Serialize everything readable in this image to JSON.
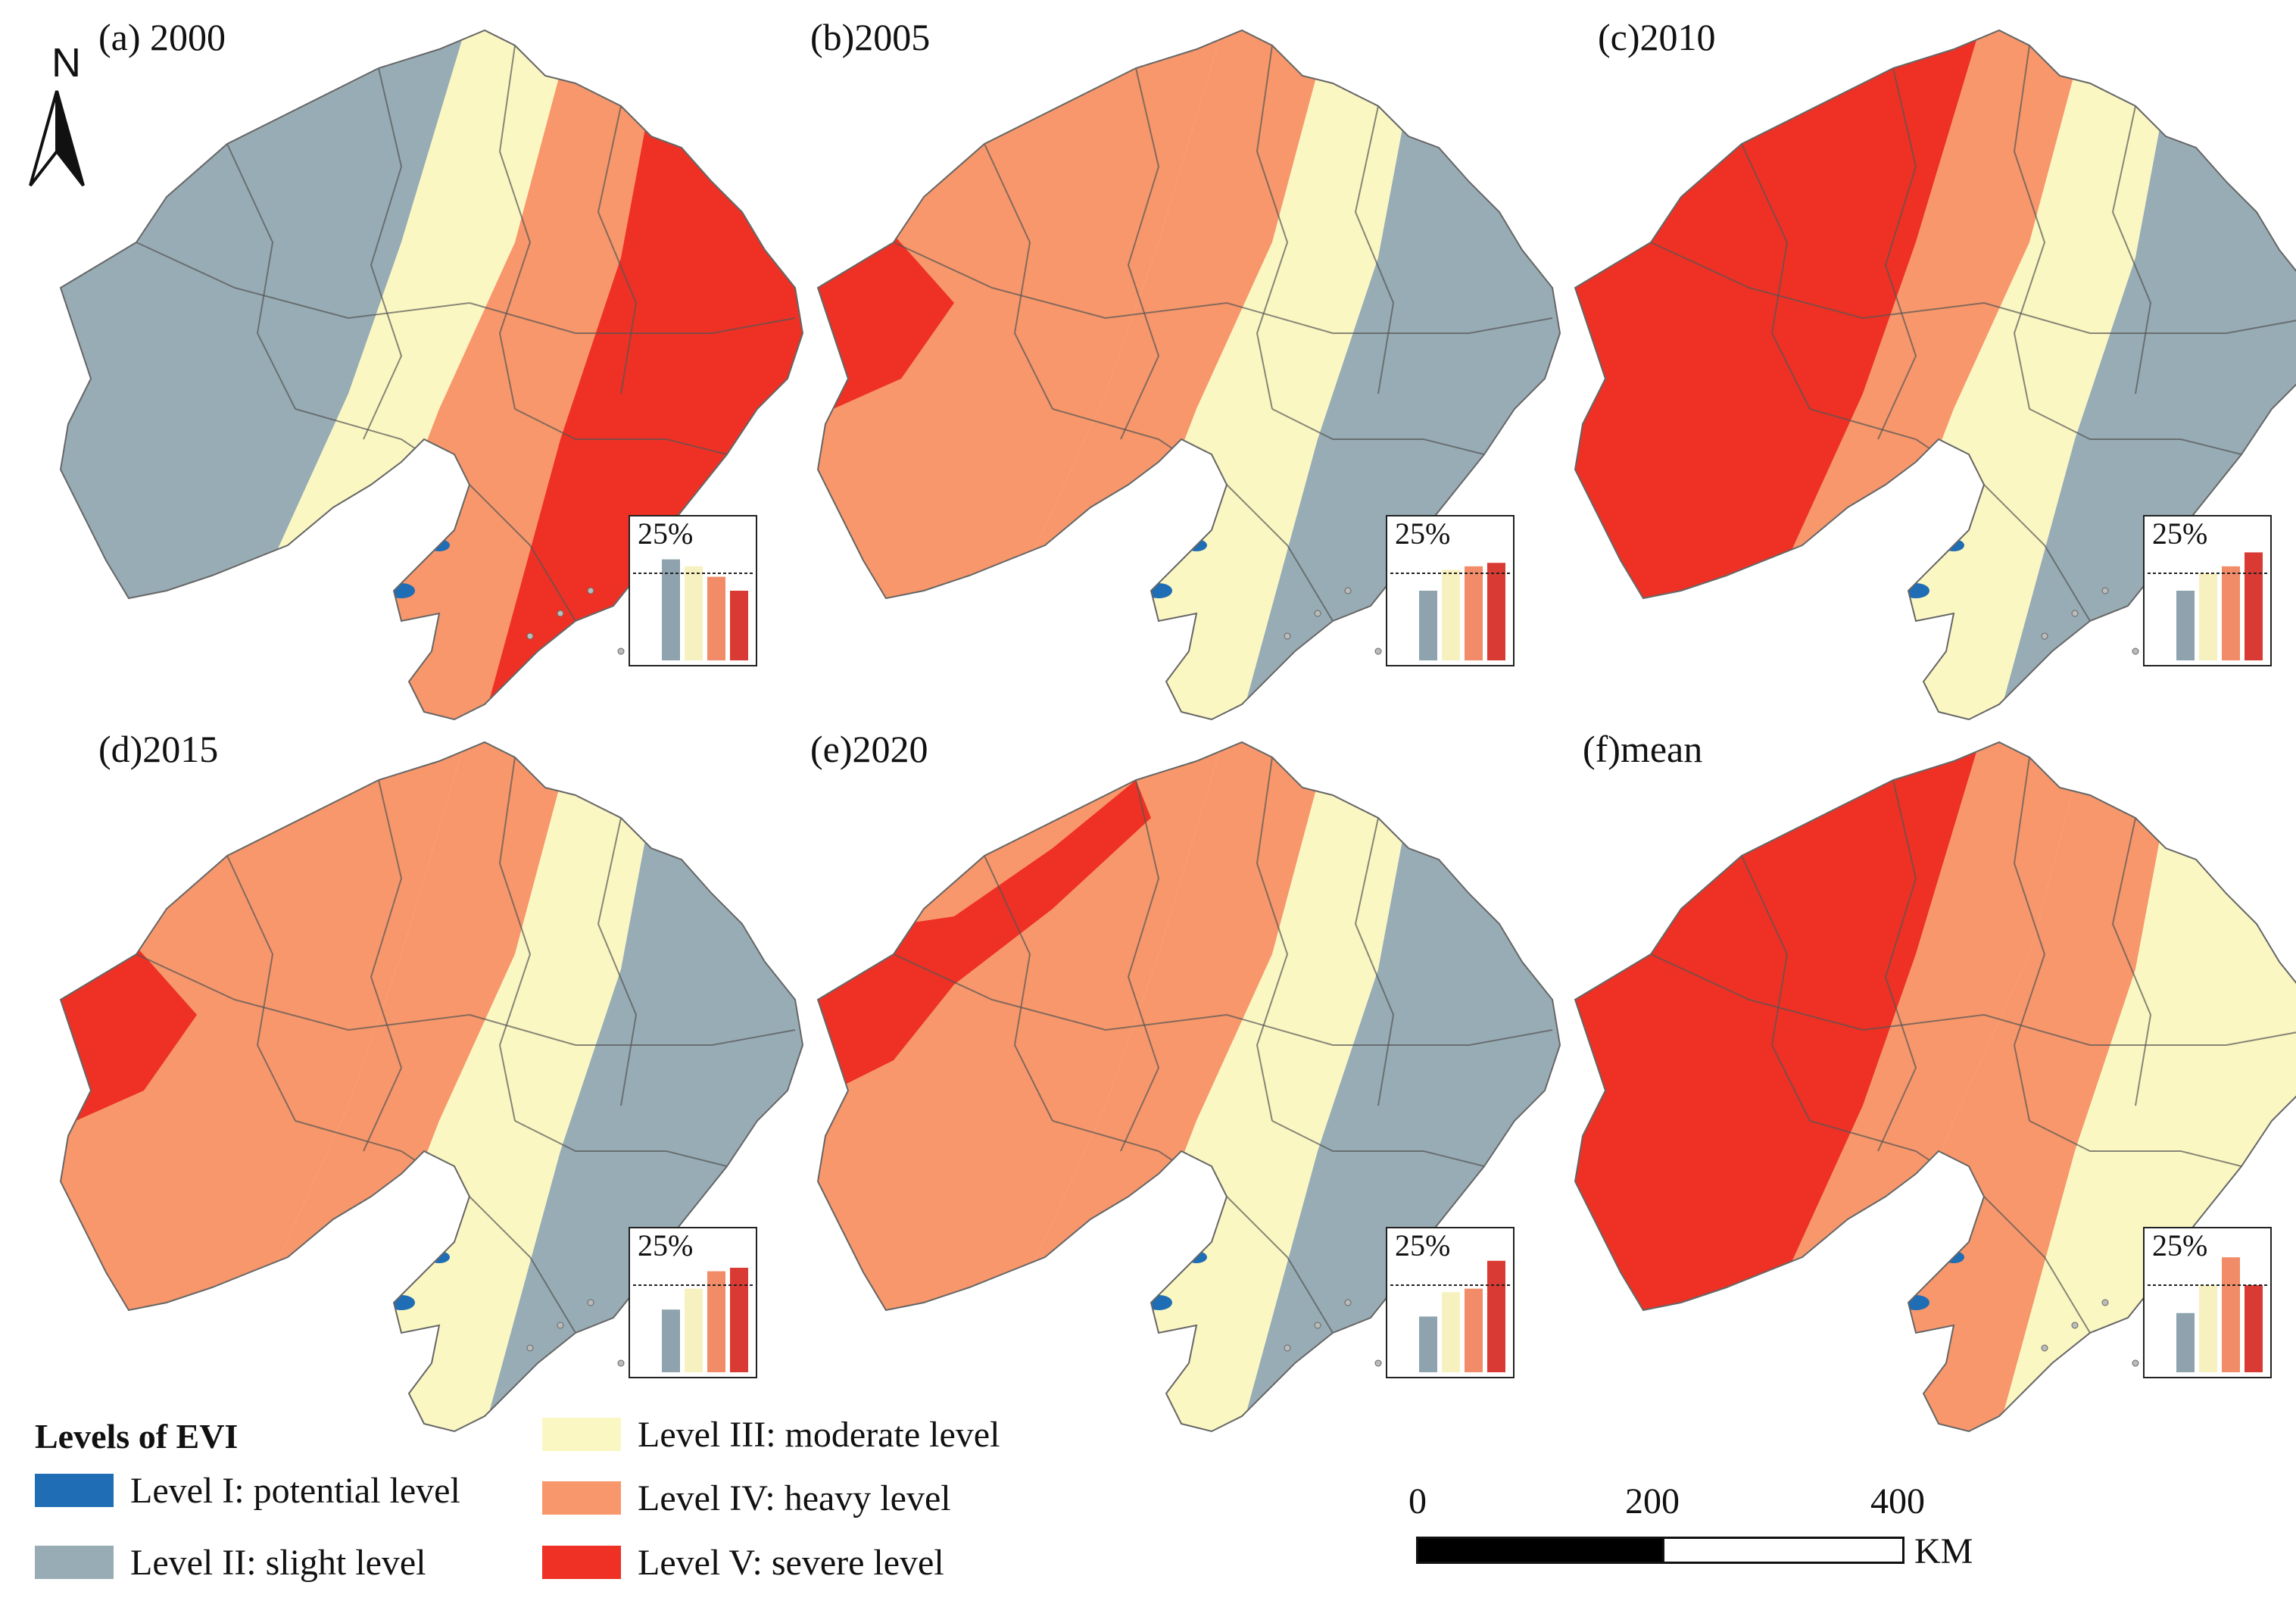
{
  "north_arrow": {
    "label": "N"
  },
  "panels": [
    {
      "title": "(a) 2000",
      "inset_label": "25%",
      "shares": [
        0.29,
        0.27,
        0.24,
        0.2
      ],
      "palette": "a"
    },
    {
      "title": "(b)2005",
      "inset_label": "25%",
      "shares": [
        0.2,
        0.26,
        0.27,
        0.28
      ],
      "palette": "b"
    },
    {
      "title": "(c)2010",
      "inset_label": "25%",
      "shares": [
        0.2,
        0.25,
        0.27,
        0.31
      ],
      "palette": "c"
    },
    {
      "title": "(d)2015",
      "inset_label": "25%",
      "shares": [
        0.18,
        0.24,
        0.29,
        0.3
      ],
      "palette": "d"
    },
    {
      "title": "(e)2020",
      "inset_label": "25%",
      "shares": [
        0.16,
        0.23,
        0.24,
        0.32
      ],
      "palette": "e"
    },
    {
      "title": "(f)mean",
      "inset_label": "25%",
      "shares": [
        0.17,
        0.25,
        0.33,
        0.25
      ],
      "palette": "f"
    }
  ],
  "legend": {
    "title": "Levels of EVI",
    "items": [
      {
        "label": "Level I: potential level",
        "color": "#1f6db5"
      },
      {
        "label": "Level II: slight level",
        "color": "#98acb5"
      },
      {
        "label": "Level III: moderate level",
        "color": "#fbf7c2"
      },
      {
        "label": "Level IV: heavy level",
        "color": "#f7976b"
      },
      {
        "label": "Level V: severe level",
        "color": "#ee3124"
      }
    ]
  },
  "scale_bar": {
    "ticks": [
      "0",
      "200",
      "400"
    ],
    "unit": "KM"
  },
  "colors": {
    "level_I": "#1f6db5",
    "level_II": "#98acb5",
    "level_III": "#fbf7c2",
    "level_IV": "#f7976b",
    "level_V": "#ee3124",
    "inset_bar_II": "#8ea3ad",
    "inset_bar_III": "#f7f1bf",
    "inset_bar_IV": "#f28c68",
    "inset_bar_V": "#d93a33"
  }
}
